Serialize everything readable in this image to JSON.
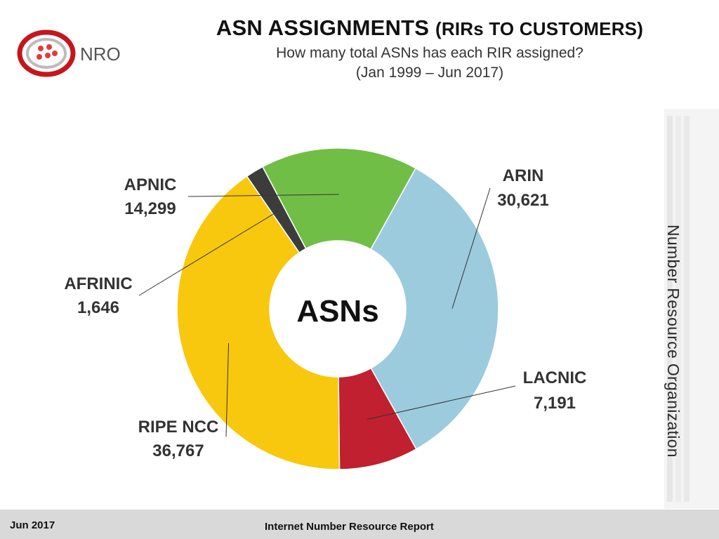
{
  "header": {
    "title": "ASN ASSIGNMENTS",
    "title_suffix": "(RIRs TO CUSTOMERS)",
    "subtitle": "How many total ASNs has each RIR assigned?",
    "date_range": "(Jan 1999 – Jun 2017)"
  },
  "logo": {
    "text": "NRO"
  },
  "side_banner": {
    "text": "Number Resource Organization"
  },
  "footer": {
    "date": "Jun 2017",
    "report": "Internet Number Resource Report"
  },
  "chart_data": {
    "type": "pie",
    "variant": "donut",
    "center_label": "ASNs",
    "slices": [
      {
        "label": "ARIN",
        "value": 30621,
        "value_text": "30,621",
        "color": "#9ccbde"
      },
      {
        "label": "LACNIC",
        "value": 7191,
        "value_text": "7,191",
        "color": "#c0202f"
      },
      {
        "label": "RIPE NCC",
        "value": 36767,
        "value_text": "36,767",
        "color": "#f8c80e"
      },
      {
        "label": "AFRINIC",
        "value": 1646,
        "value_text": "1,646",
        "color": "#3c3c3c"
      },
      {
        "label": "APNIC",
        "value": 14299,
        "value_text": "14,299",
        "color": "#70be46"
      }
    ],
    "legend": "none"
  }
}
